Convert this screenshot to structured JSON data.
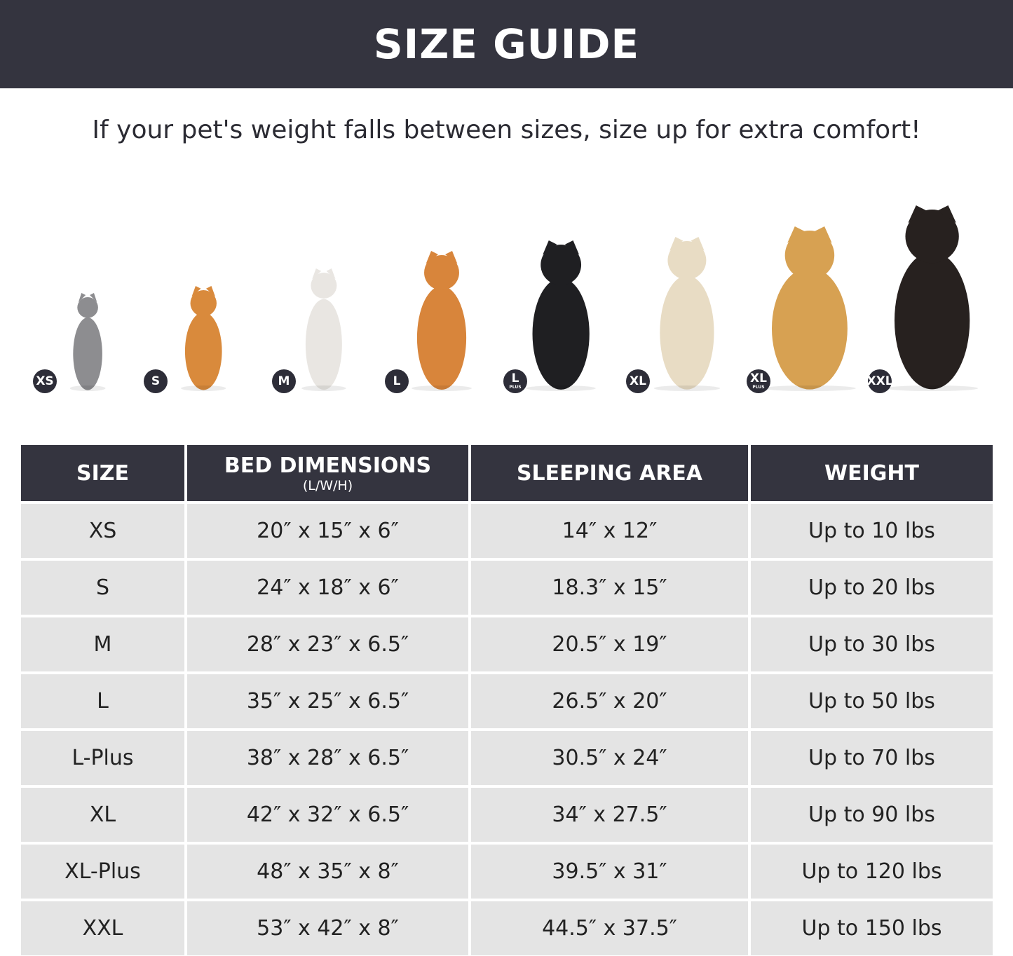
{
  "header": {
    "title": "SIZE GUIDE"
  },
  "subtitle": "If your pet's weight falls between sizes, size up for extra comfort!",
  "pets": [
    {
      "badge": "XS",
      "plus": "",
      "animal": "cat",
      "color": "#8d8d90"
    },
    {
      "badge": "S",
      "plus": "",
      "animal": "pomeranian",
      "color": "#d98a3c"
    },
    {
      "badge": "M",
      "plus": "",
      "animal": "french-bulldog",
      "color": "#e9e6e2"
    },
    {
      "badge": "L",
      "plus": "",
      "animal": "shiba-inu",
      "color": "#d8853b"
    },
    {
      "badge": "L",
      "plus": "PLUS",
      "animal": "border-collie",
      "color": "#1f1f22"
    },
    {
      "badge": "XL",
      "plus": "",
      "animal": "labrador",
      "color": "#e8dcc4"
    },
    {
      "badge": "XL",
      "plus": "PLUS",
      "animal": "golden-retriever",
      "color": "#d7a152"
    },
    {
      "badge": "XXL",
      "plus": "",
      "animal": "doberman",
      "color": "#27211f"
    }
  ],
  "table": {
    "headers": [
      {
        "label": "SIZE",
        "sub": ""
      },
      {
        "label": "BED DIMENSIONS",
        "sub": "(L/W/H)"
      },
      {
        "label": "SLEEPING AREA",
        "sub": ""
      },
      {
        "label": "WEIGHT",
        "sub": ""
      }
    ],
    "rows": [
      [
        "XS",
        "20″ x 15″ x 6″",
        "14″ x 12″",
        "Up to 10 lbs"
      ],
      [
        "S",
        "24″ x 18″ x 6″",
        "18.3″ x 15″",
        "Up to 20 lbs"
      ],
      [
        "M",
        "28″ x 23″ x 6.5″",
        "20.5″ x 19″",
        "Up to 30 lbs"
      ],
      [
        "L",
        "35″ x 25″ x 6.5″",
        "26.5″ x 20″",
        "Up to 50 lbs"
      ],
      [
        "L-Plus",
        "38″ x 28″ x 6.5″",
        "30.5″ x 24″",
        "Up to 70 lbs"
      ],
      [
        "XL",
        "42″ x 32″ x 6.5″",
        "34″ x 27.5″",
        "Up to 90 lbs"
      ],
      [
        "XL-Plus",
        "48″ x 35″ x 8″",
        "39.5″ x 31″",
        "Up to 120 lbs"
      ],
      [
        "XXL",
        "53″ x 42″ x 8″",
        "44.5″ x 37.5″",
        "Up to 150 lbs"
      ]
    ]
  }
}
